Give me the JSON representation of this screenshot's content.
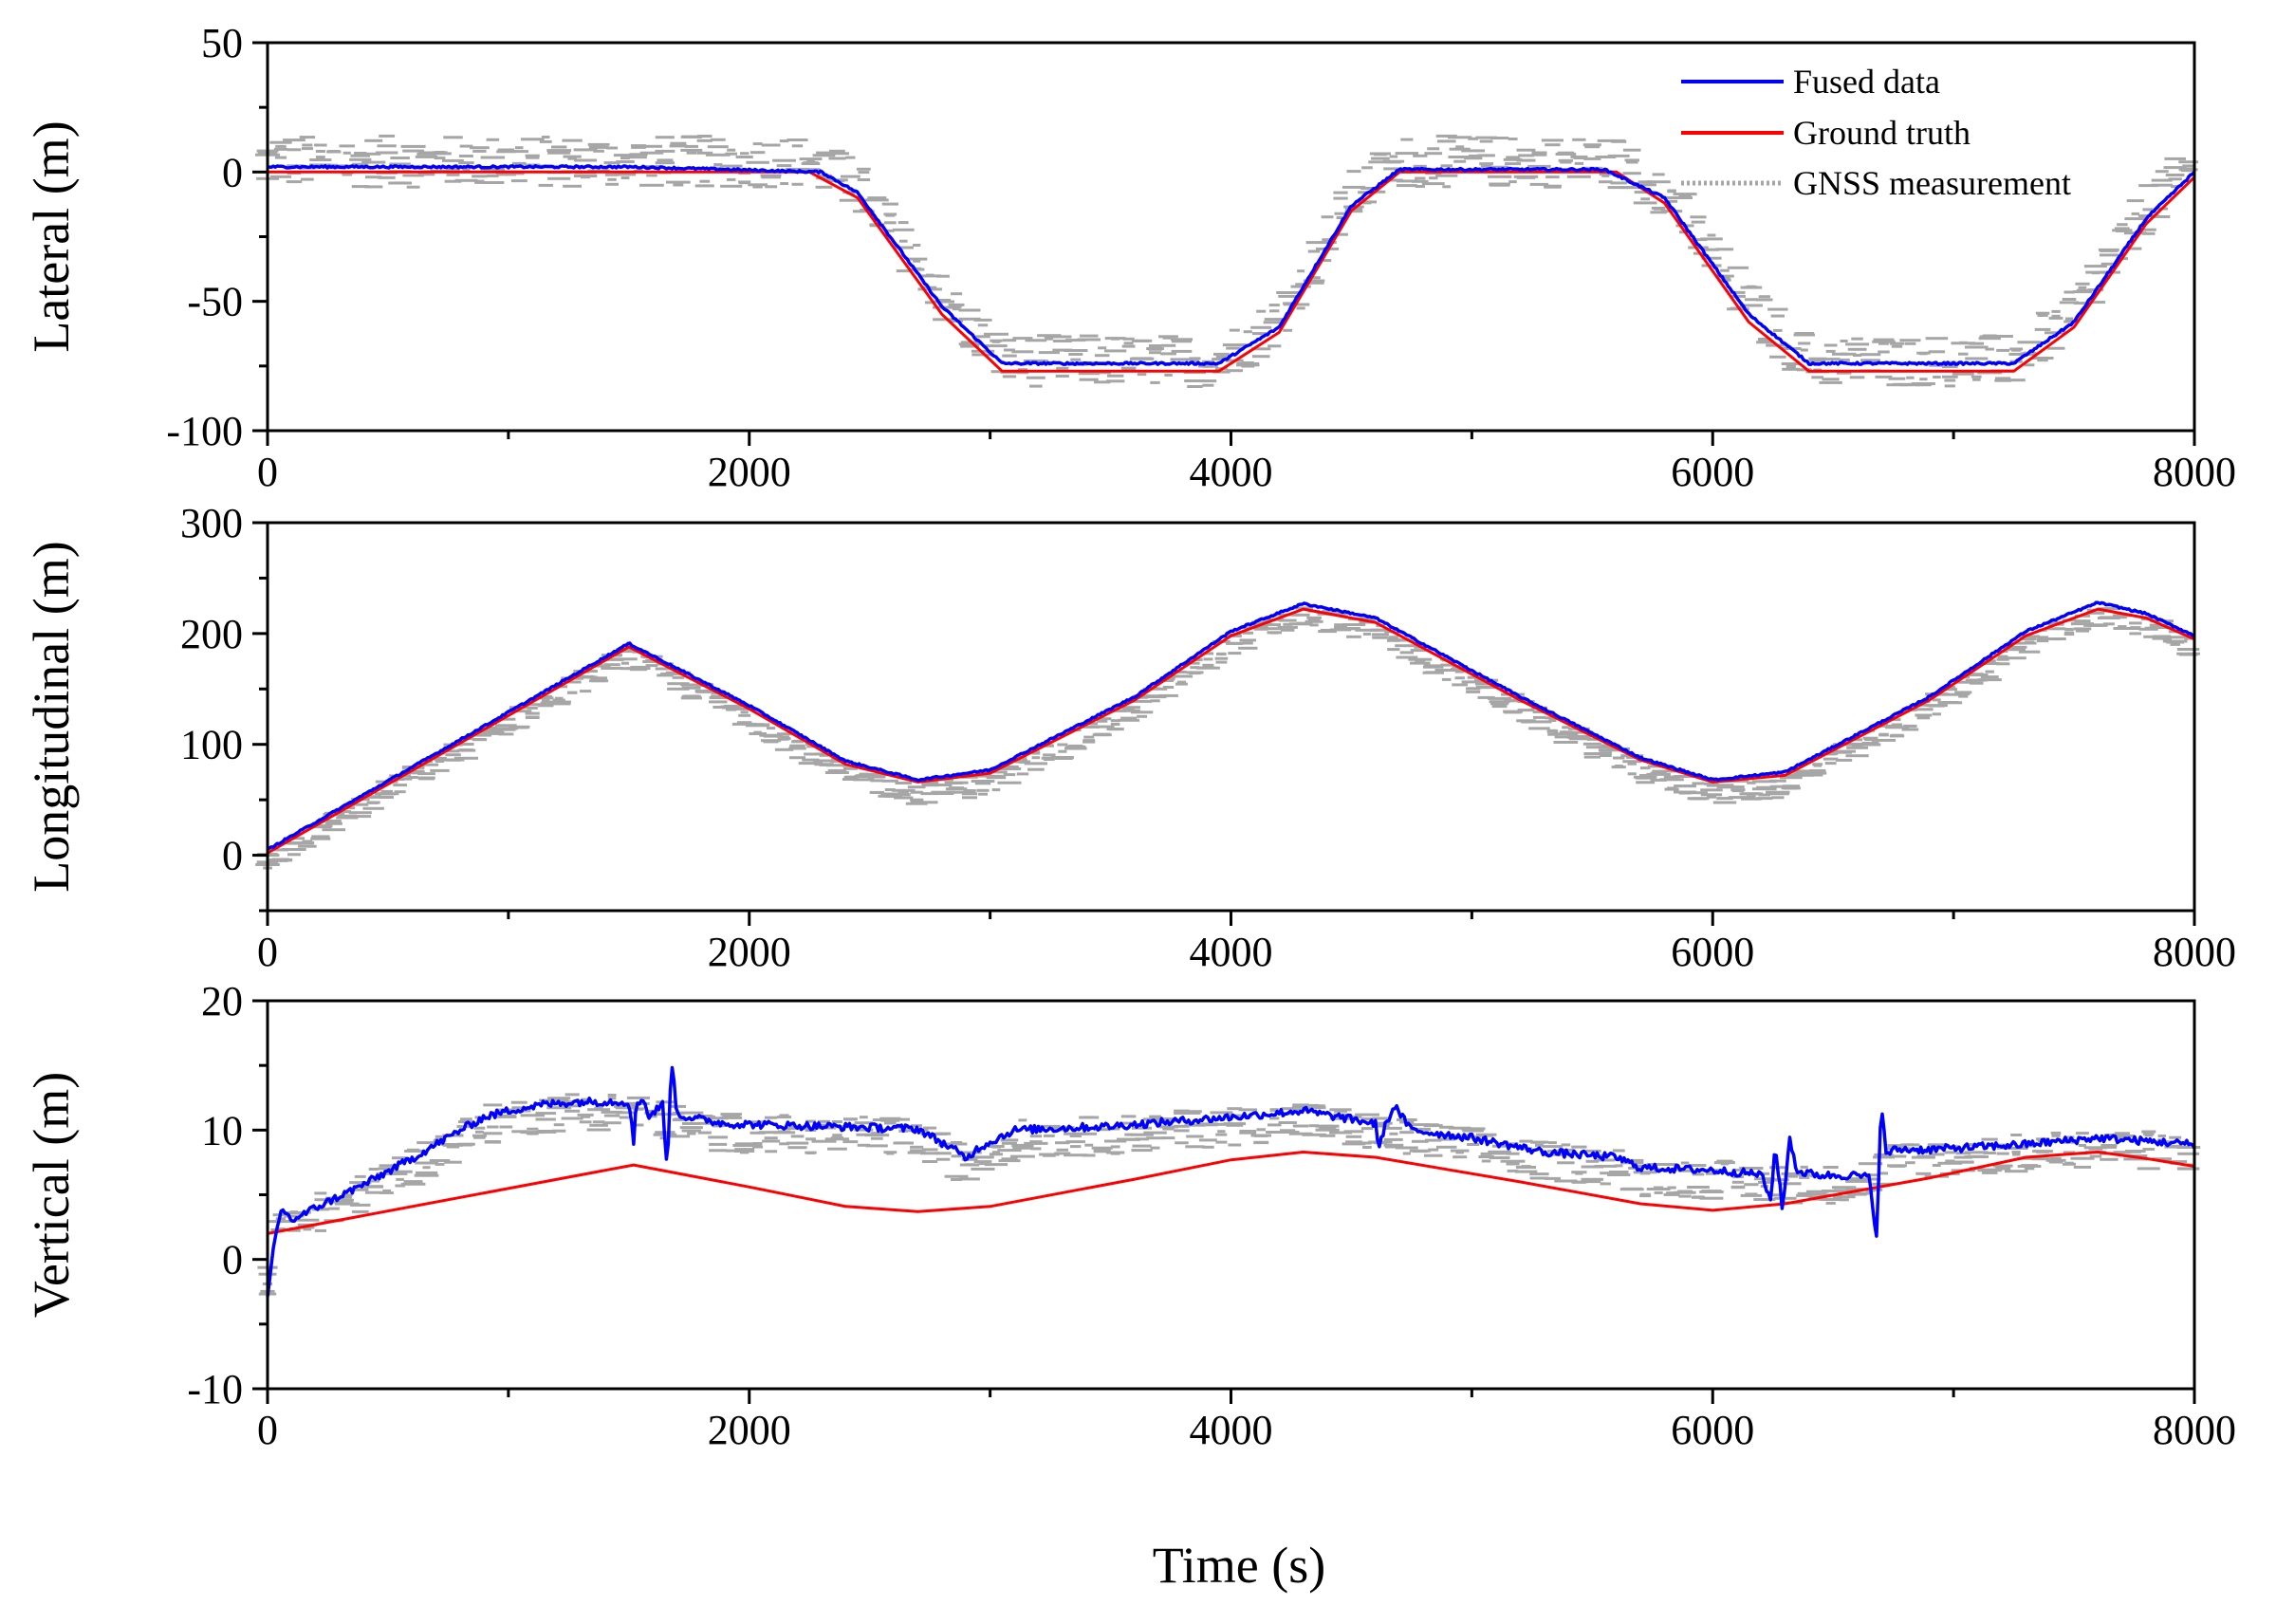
{
  "figure": {
    "xlabel": "Time (s)",
    "legend": {
      "position": "top-right of first panel",
      "entries": [
        {
          "label": "Fused data",
          "color": "#0000ff",
          "style": "line"
        },
        {
          "label": "Ground truth",
          "color": "#ff0000",
          "style": "line"
        },
        {
          "label": "GNSS measurement",
          "color": "#a6a6a6",
          "style": "dotted"
        }
      ]
    }
  },
  "chart_data": [
    {
      "type": "line",
      "ylabel": "Lateral (m)",
      "xlim": [
        0,
        8000
      ],
      "ylim": [
        -100,
        50
      ],
      "xticks": [
        0,
        2000,
        4000,
        6000,
        8000
      ],
      "yticks": [
        50,
        0,
        -50,
        -100
      ],
      "series": [
        {
          "name": "Ground truth",
          "color": "#ff0000",
          "x": [
            0,
            2250,
            2450,
            2800,
            3050,
            3950,
            4200,
            4500,
            4700,
            5600,
            5800,
            6150,
            6400,
            7250,
            7500,
            7800,
            8000
          ],
          "y": [
            0,
            0,
            -10,
            -55,
            -77,
            -77,
            -62,
            -15,
            0,
            0,
            -12,
            -58,
            -77,
            -77,
            -60,
            -20,
            -2
          ]
        },
        {
          "name": "Fused data",
          "color": "#0000ff",
          "x": [
            0,
            1500,
            2300,
            2450,
            2800,
            3050,
            3950,
            4200,
            4500,
            4700,
            5550,
            5800,
            6150,
            6400,
            7250,
            7500,
            7800,
            8000
          ],
          "y": [
            2,
            2,
            0,
            -8,
            -52,
            -74,
            -74,
            -60,
            -13,
            1,
            1,
            -10,
            -55,
            -74,
            -74,
            -58,
            -18,
            0
          ]
        },
        {
          "name": "GNSS measurement",
          "color": "#a6a6a6",
          "noise_band": 10,
          "x": [
            0,
            2250,
            2450,
            2800,
            3050,
            3950,
            4200,
            4500,
            4700,
            5600,
            5800,
            6150,
            6400,
            7250,
            7500,
            7800,
            8000
          ],
          "y": [
            4,
            4,
            -5,
            -48,
            -73,
            -73,
            -57,
            -10,
            4,
            4,
            -7,
            -52,
            -73,
            -73,
            -55,
            -15,
            2
          ]
        }
      ]
    },
    {
      "type": "line",
      "ylabel": "Longitudinal (m)",
      "xlim": [
        0,
        8000
      ],
      "ylim": [
        -50,
        300
      ],
      "xticks": [
        0,
        2000,
        4000,
        6000,
        8000
      ],
      "yticks": [
        300,
        200,
        100,
        0
      ],
      "series": [
        {
          "name": "Ground truth",
          "color": "#ff0000",
          "x": [
            0,
            1500,
            2000,
            2400,
            2700,
            3000,
            3600,
            4000,
            4300,
            4600,
            5200,
            5700,
            6000,
            6300,
            6900,
            7300,
            7600,
            7800,
            8000
          ],
          "y": [
            2,
            188,
            132,
            82,
            66,
            74,
            140,
            198,
            222,
            210,
            140,
            86,
            66,
            72,
            140,
            198,
            222,
            214,
            195
          ]
        },
        {
          "name": "Fused data",
          "color": "#0000ff",
          "x": [
            0,
            1500,
            2000,
            2400,
            2700,
            3000,
            3600,
            4000,
            4300,
            4600,
            5200,
            5700,
            6000,
            6300,
            6900,
            7300,
            7600,
            7800,
            8000
          ],
          "y": [
            5,
            191,
            135,
            85,
            68,
            77,
            143,
            202,
            227,
            214,
            143,
            88,
            68,
            75,
            143,
            202,
            228,
            218,
            198
          ]
        },
        {
          "name": "GNSS measurement",
          "color": "#a6a6a6",
          "noise_band": 10,
          "x": [
            0,
            1500,
            2000,
            2400,
            2700,
            3000,
            3600,
            4000,
            4300,
            4600,
            5200,
            5700,
            6000,
            6300,
            6900,
            7300,
            7600,
            7800,
            8000
          ],
          "y": [
            -4,
            180,
            124,
            72,
            56,
            64,
            130,
            190,
            216,
            202,
            132,
            76,
            56,
            62,
            132,
            190,
            216,
            208,
            188
          ]
        }
      ]
    },
    {
      "type": "line",
      "ylabel": "Vertical (m)",
      "xlim": [
        0,
        8000
      ],
      "ylim": [
        -10,
        20
      ],
      "xticks": [
        0,
        2000,
        4000,
        6000,
        8000
      ],
      "yticks": [
        20,
        10,
        0,
        -10
      ],
      "series": [
        {
          "name": "Ground truth",
          "color": "#ff0000",
          "x": [
            0,
            1520,
            2000,
            2400,
            2700,
            3000,
            3600,
            4000,
            4300,
            4600,
            5200,
            5700,
            6000,
            6300,
            6900,
            7300,
            7600,
            7800,
            8000
          ],
          "y": [
            2,
            7.3,
            5.6,
            4.1,
            3.7,
            4.1,
            6.2,
            7.7,
            8.3,
            7.9,
            6.0,
            4.3,
            3.8,
            4.3,
            6.3,
            7.9,
            8.3,
            7.8,
            7.2
          ]
        },
        {
          "name": "Fused data",
          "color": "#0000ff",
          "x": [
            0,
            30,
            60,
            100,
            200,
            400,
            600,
            800,
            900,
            1000,
            1150,
            1300,
            1500,
            1520,
            1530,
            1560,
            1580,
            1640,
            1660,
            1670,
            1680,
            1700,
            1750,
            1900,
            2300,
            2700,
            2850,
            2900,
            2950,
            3100,
            3500,
            4000,
            4300,
            4600,
            4610,
            4640,
            4680,
            4710,
            4750,
            5000,
            5300,
            5600,
            5700,
            6000,
            6200,
            6240,
            6260,
            6290,
            6320,
            6350,
            6450,
            6600,
            6650,
            6680,
            6700,
            6720,
            6760,
            6900,
            7300,
            7600,
            8000
          ],
          "y": [
            -3,
            1.5,
            4,
            3,
            4,
            5.8,
            7.8,
            10,
            11,
            11.5,
            12,
            12.2,
            12.2,
            9,
            12,
            12.5,
            11,
            12,
            6.5,
            13,
            15,
            11.2,
            11,
            10.5,
            10.3,
            10.1,
            8.5,
            7.8,
            8.6,
            10,
            10.3,
            11,
            11.5,
            10.5,
            8.6,
            10.3,
            11.9,
            11,
            10,
            9.4,
            8.3,
            7.9,
            7.1,
            6.9,
            6.6,
            4.6,
            8.8,
            3.8,
            9.4,
            6.8,
            6.5,
            6.5,
            6.3,
            1.8,
            12,
            8.2,
            8.5,
            8.5,
            8.9,
            9.4,
            8.9
          ]
        },
        {
          "name": "GNSS measurement",
          "color": "#a6a6a6",
          "noise_band": 1.5,
          "x": [
            0,
            30,
            60,
            100,
            200,
            400,
            600,
            800,
            900,
            1000,
            1150,
            1300,
            1500,
            1750,
            1900,
            2300,
            2700,
            2850,
            2900,
            2950,
            3100,
            3500,
            4000,
            4300,
            4600,
            4750,
            5000,
            5300,
            5600,
            5700,
            6000,
            6200,
            6450,
            6600,
            6760,
            6900,
            7300,
            7600,
            8000
          ],
          "y": [
            -2,
            1,
            3,
            2.5,
            3.5,
            5.2,
            7.2,
            9.3,
            10.3,
            10.8,
            11.3,
            11.5,
            11.5,
            10.3,
            9.8,
            9.6,
            9.4,
            7.8,
            7.1,
            7.9,
            9.3,
            9.6,
            10.3,
            10.8,
            9.8,
            9.3,
            8.7,
            7.6,
            7.2,
            6.4,
            6.2,
            5.9,
            5.8,
            5.8,
            7.5,
            7.8,
            8.2,
            8.7,
            8.2
          ]
        }
      ]
    }
  ]
}
